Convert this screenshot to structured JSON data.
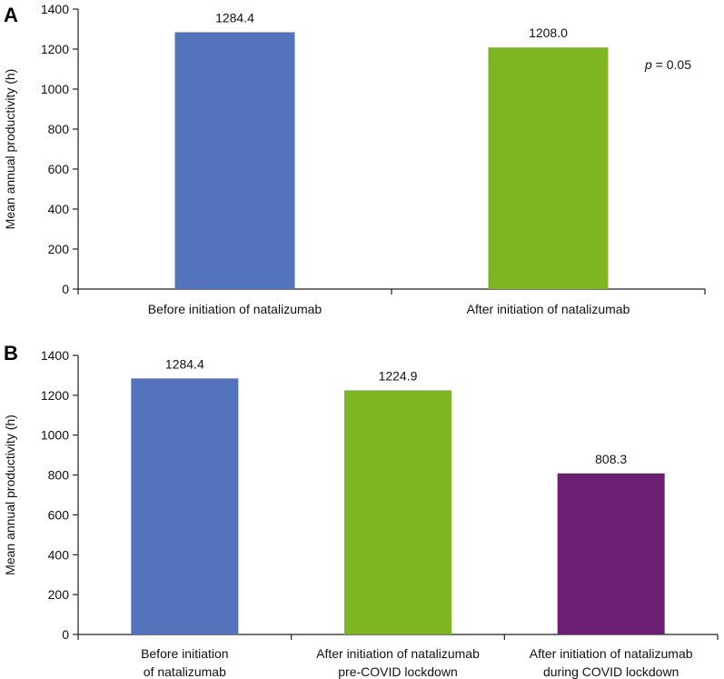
{
  "chart_data": [
    {
      "panel_label": "A",
      "type": "bar",
      "ylabel": "Mean annual productivity (h)",
      "ylim": [
        0,
        1400
      ],
      "yticks": [
        0,
        200,
        400,
        600,
        800,
        1000,
        1200,
        1400
      ],
      "grid": false,
      "categories": [
        [
          "Before initiation of natalizumab"
        ],
        [
          "After initiation of natalizumab"
        ]
      ],
      "values": [
        1284.4,
        1208.0
      ],
      "data_labels": [
        "1284.4",
        "1208.0"
      ],
      "colors": [
        "#5374BC",
        "#7DB523"
      ],
      "annotation": {
        "italic": "p",
        "text": " = 0.05"
      }
    },
    {
      "panel_label": "B",
      "type": "bar",
      "ylabel": "Mean annual productivity (h)",
      "ylim": [
        0,
        1400
      ],
      "yticks": [
        0,
        200,
        400,
        600,
        800,
        1000,
        1200,
        1400
      ],
      "grid": false,
      "categories": [
        [
          "Before initiation",
          "of natalizumab"
        ],
        [
          "After initiation of natalizumab",
          "pre-COVID lockdown"
        ],
        [
          "After initiation of natalizumab",
          "during COVID lockdown"
        ]
      ],
      "values": [
        1284.4,
        1224.9,
        808.3
      ],
      "data_labels": [
        "1284.4",
        "1224.9",
        "808.3"
      ],
      "colors": [
        "#5374BC",
        "#7DB523",
        "#6B2073"
      ]
    }
  ]
}
